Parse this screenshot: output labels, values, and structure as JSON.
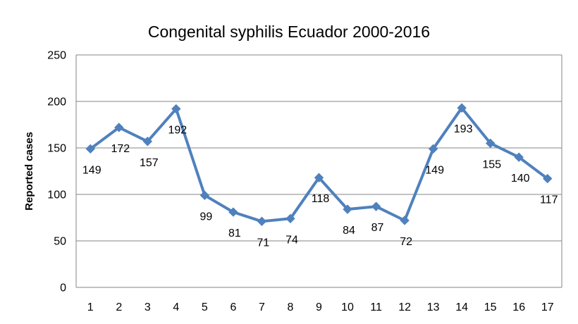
{
  "chart_data": {
    "type": "line",
    "title": "Congenital syphilis Ecuador 2000-2016",
    "ylabel": "Reported cases",
    "xlabel": "",
    "x": [
      1,
      2,
      3,
      4,
      5,
      6,
      7,
      8,
      9,
      10,
      11,
      12,
      13,
      14,
      15,
      16,
      17
    ],
    "values": [
      149,
      172,
      157,
      192,
      99,
      81,
      71,
      74,
      118,
      84,
      87,
      72,
      149,
      193,
      155,
      140,
      117
    ],
    "ylim": [
      0,
      250
    ],
    "yticks": [
      0,
      50,
      100,
      150,
      200,
      250
    ],
    "grid": true,
    "legend": "none",
    "line_color": "#4F81BD",
    "grid_color": "#868686"
  }
}
